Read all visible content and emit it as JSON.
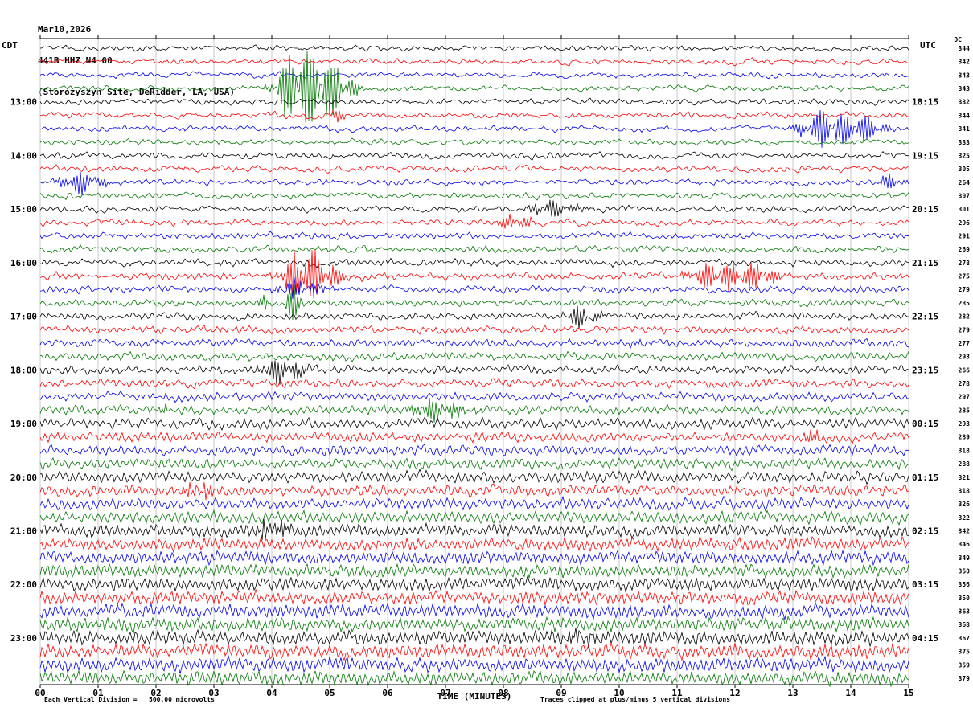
{
  "header": {
    "date": "Mar10,2026",
    "station": "441B HHZ N4 00",
    "site": "(Storozyszyn Site, DeRidder, LA, USA)"
  },
  "axes": {
    "left_tz": "CDT",
    "right_tz": "UTC",
    "dc_label": "DC",
    "x_title": "TIME (MINUTES)",
    "x_ticks": [
      "00",
      "01",
      "02",
      "03",
      "04",
      "05",
      "06",
      "07",
      "08",
      "09",
      "10",
      "11",
      "12",
      "13",
      "14",
      "15"
    ]
  },
  "footer": {
    "division_note": "Each Vertical Division =   500.00 microvolts",
    "clip_note": "Traces clipped at plus/minus 5 vertical divisions"
  },
  "chart_data": {
    "type": "line",
    "subtype": "helicorder-seismogram",
    "title": "441B HHZ N4 00 helicorder, Storozyszyn Site, DeRidder, LA, USA, Mar10,2026",
    "xlabel": "TIME (MINUTES)",
    "x_range_minutes": [
      0,
      15
    ],
    "minutes_per_line": 15,
    "grid": "vertical-minute-lines",
    "trace_colors_cycle": [
      "#000000",
      "#ff0000",
      "#0000ee",
      "#007700"
    ],
    "hour_labels_cdt": [
      "13:00",
      "14:00",
      "15:00",
      "16:00",
      "17:00",
      "18:00",
      "19:00",
      "20:00",
      "21:00",
      "22:00",
      "23:00"
    ],
    "hour_labels_utc": [
      "18:15",
      "19:15",
      "20:15",
      "21:15",
      "22:15",
      "23:15",
      "00:15",
      "01:15",
      "02:15",
      "03:15",
      "04:15"
    ],
    "rows": [
      {
        "color": "#000000",
        "dc": 344,
        "noise": 2.4,
        "osc": 1.0,
        "period": 9
      },
      {
        "color": "#ff0000",
        "dc": 342,
        "noise": 2.4,
        "osc": 1.0,
        "period": 9
      },
      {
        "color": "#0000ee",
        "dc": 343,
        "noise": 2.4,
        "osc": 1.0,
        "period": 9
      },
      {
        "color": "#007700",
        "dc": 343,
        "noise": 2.4,
        "osc": 1.1,
        "period": 9
      },
      {
        "color": "#000000",
        "dc": 332,
        "noise": 2.4,
        "osc": 1.2,
        "period": 9,
        "cdt": "13:00",
        "utc": "18:15"
      },
      {
        "color": "#ff0000",
        "dc": 344,
        "noise": 2.4,
        "osc": 1.2,
        "period": 9
      },
      {
        "color": "#0000ee",
        "dc": 341,
        "noise": 2.4,
        "osc": 1.2,
        "period": 9
      },
      {
        "color": "#007700",
        "dc": 333,
        "noise": 2.4,
        "osc": 1.3,
        "period": 9
      },
      {
        "color": "#000000",
        "dc": 325,
        "noise": 2.4,
        "osc": 1.4,
        "period": 9,
        "cdt": "14:00",
        "utc": "19:15"
      },
      {
        "color": "#ff0000",
        "dc": 305,
        "noise": 2.4,
        "osc": 1.4,
        "period": 9
      },
      {
        "color": "#0000ee",
        "dc": 264,
        "noise": 2.4,
        "osc": 1.4,
        "period": 9
      },
      {
        "color": "#007700",
        "dc": 307,
        "noise": 2.4,
        "osc": 1.5,
        "period": 9
      },
      {
        "color": "#000000",
        "dc": 301,
        "noise": 2.4,
        "osc": 1.6,
        "period": 9,
        "cdt": "15:00",
        "utc": "20:15"
      },
      {
        "color": "#ff0000",
        "dc": 296,
        "noise": 2.4,
        "osc": 1.6,
        "period": 9
      },
      {
        "color": "#0000ee",
        "dc": 291,
        "noise": 2.4,
        "osc": 1.6,
        "period": 8
      },
      {
        "color": "#007700",
        "dc": 269,
        "noise": 2.5,
        "osc": 1.7,
        "period": 8
      },
      {
        "color": "#000000",
        "dc": 278,
        "noise": 2.5,
        "osc": 1.8,
        "period": 8,
        "cdt": "16:00",
        "utc": "21:15"
      },
      {
        "color": "#ff0000",
        "dc": 275,
        "noise": 2.5,
        "osc": 1.9,
        "period": 8
      },
      {
        "color": "#0000ee",
        "dc": 279,
        "noise": 2.5,
        "osc": 2.0,
        "period": 8
      },
      {
        "color": "#007700",
        "dc": 285,
        "noise": 2.5,
        "osc": 2.1,
        "period": 8
      },
      {
        "color": "#000000",
        "dc": 282,
        "noise": 2.5,
        "osc": 2.2,
        "period": 8,
        "cdt": "17:00",
        "utc": "22:15"
      },
      {
        "color": "#ff0000",
        "dc": 279,
        "noise": 2.6,
        "osc": 2.3,
        "period": 8
      },
      {
        "color": "#0000ee",
        "dc": 277,
        "noise": 2.6,
        "osc": 2.4,
        "period": 8
      },
      {
        "color": "#007700",
        "dc": 293,
        "noise": 2.6,
        "osc": 2.5,
        "period": 8
      },
      {
        "color": "#000000",
        "dc": 266,
        "noise": 2.7,
        "osc": 2.6,
        "period": 8,
        "cdt": "18:00",
        "utc": "23:15"
      },
      {
        "color": "#ff0000",
        "dc": 278,
        "noise": 2.7,
        "osc": 2.7,
        "period": 8
      },
      {
        "color": "#0000ee",
        "dc": 297,
        "noise": 2.7,
        "osc": 2.8,
        "period": 8
      },
      {
        "color": "#007700",
        "dc": 285,
        "noise": 2.8,
        "osc": 3.0,
        "period": 8
      },
      {
        "color": "#000000",
        "dc": 293,
        "noise": 2.9,
        "osc": 3.4,
        "period": 8,
        "cdt": "19:00",
        "utc": "00:15"
      },
      {
        "color": "#ff0000",
        "dc": 289,
        "noise": 2.9,
        "osc": 3.5,
        "period": 8
      },
      {
        "color": "#0000ee",
        "dc": 318,
        "noise": 2.9,
        "osc": 3.6,
        "period": 8
      },
      {
        "color": "#007700",
        "dc": 288,
        "noise": 3.0,
        "osc": 3.8,
        "period": 8
      },
      {
        "color": "#000000",
        "dc": 321,
        "noise": 3.0,
        "osc": 4.2,
        "period": 8,
        "cdt": "20:00",
        "utc": "01:15"
      },
      {
        "color": "#ff0000",
        "dc": 318,
        "noise": 3.0,
        "osc": 4.3,
        "period": 8
      },
      {
        "color": "#0000ee",
        "dc": 326,
        "noise": 3.0,
        "osc": 4.4,
        "period": 8
      },
      {
        "color": "#007700",
        "dc": 322,
        "noise": 3.0,
        "osc": 4.5,
        "period": 8
      },
      {
        "color": "#000000",
        "dc": 342,
        "noise": 3.0,
        "osc": 4.8,
        "period": 7,
        "cdt": "21:00",
        "utc": "02:15"
      },
      {
        "color": "#ff0000",
        "dc": 346,
        "noise": 3.1,
        "osc": 4.9,
        "period": 7
      },
      {
        "color": "#0000ee",
        "dc": 349,
        "noise": 3.1,
        "osc": 5.0,
        "period": 7
      },
      {
        "color": "#007700",
        "dc": 350,
        "noise": 3.1,
        "osc": 5.0,
        "period": 7
      },
      {
        "color": "#000000",
        "dc": 356,
        "noise": 3.2,
        "osc": 5.2,
        "period": 7,
        "cdt": "22:00",
        "utc": "03:15"
      },
      {
        "color": "#ff0000",
        "dc": 350,
        "noise": 3.2,
        "osc": 5.2,
        "period": 7
      },
      {
        "color": "#0000ee",
        "dc": 363,
        "noise": 3.2,
        "osc": 5.3,
        "period": 7
      },
      {
        "color": "#007700",
        "dc": 368,
        "noise": 3.3,
        "osc": 5.4,
        "period": 7
      },
      {
        "color": "#000000",
        "dc": 367,
        "noise": 3.4,
        "osc": 5.6,
        "period": 7,
        "cdt": "23:00",
        "utc": "04:15"
      },
      {
        "color": "#ff0000",
        "dc": 375,
        "noise": 3.4,
        "osc": 5.6,
        "period": 7
      },
      {
        "color": "#0000ee",
        "dc": 359,
        "noise": 3.4,
        "osc": 5.6,
        "period": 7
      },
      {
        "color": "#007700",
        "dc": 379,
        "noise": 3.4,
        "osc": 5.6,
        "period": 7
      }
    ],
    "events": [
      {
        "row": 3,
        "min": 4.45,
        "dur": 0.55,
        "amp": 52
      },
      {
        "row": 3,
        "min": 4.95,
        "dur": 0.35,
        "amp": 22
      },
      {
        "row": 5,
        "min": 5.1,
        "dur": 0.12,
        "amp": 11
      },
      {
        "row": 6,
        "min": 13.5,
        "dur": 0.55,
        "amp": 26
      },
      {
        "row": 6,
        "min": 14.25,
        "dur": 0.3,
        "amp": 14
      },
      {
        "row": 10,
        "min": 0.6,
        "dur": 0.4,
        "amp": 16
      },
      {
        "row": 10,
        "min": 14.65,
        "dur": 0.25,
        "amp": 12
      },
      {
        "row": 12,
        "min": 8.75,
        "dur": 0.4,
        "amp": 13
      },
      {
        "row": 13,
        "min": 8.15,
        "dur": 0.35,
        "amp": 10
      },
      {
        "row": 17,
        "min": 4.5,
        "dur": 0.5,
        "amp": 40
      },
      {
        "row": 17,
        "min": 11.7,
        "dur": 0.7,
        "amp": 20
      },
      {
        "row": 17,
        "min": 12.4,
        "dur": 0.25,
        "amp": 11
      },
      {
        "row": 18,
        "min": 4.4,
        "dur": 0.45,
        "amp": 12
      },
      {
        "row": 19,
        "min": 3.78,
        "dur": 0.12,
        "amp": 13
      },
      {
        "row": 19,
        "min": 4.35,
        "dur": 0.14,
        "amp": 26
      },
      {
        "row": 20,
        "min": 9.3,
        "dur": 0.3,
        "amp": 15
      },
      {
        "row": 22,
        "min": 10.25,
        "dur": 0.12,
        "amp": 9
      },
      {
        "row": 24,
        "min": 4.1,
        "dur": 0.4,
        "amp": 18
      },
      {
        "row": 27,
        "min": 2.15,
        "dur": 0.12,
        "amp": 10
      },
      {
        "row": 27,
        "min": 6.75,
        "dur": 0.5,
        "amp": 15
      },
      {
        "row": 29,
        "min": 13.25,
        "dur": 0.2,
        "amp": 10
      },
      {
        "row": 33,
        "min": 2.7,
        "dur": 0.3,
        "amp": 12
      },
      {
        "row": 36,
        "min": 3.95,
        "dur": 0.3,
        "amp": 16
      },
      {
        "row": 44,
        "min": 9.3,
        "dur": 0.35,
        "amp": 9
      }
    ],
    "notes": {
      "vertical_division": "500.00 microvolts",
      "clipping": "plus/minus 5 vertical divisions"
    }
  }
}
